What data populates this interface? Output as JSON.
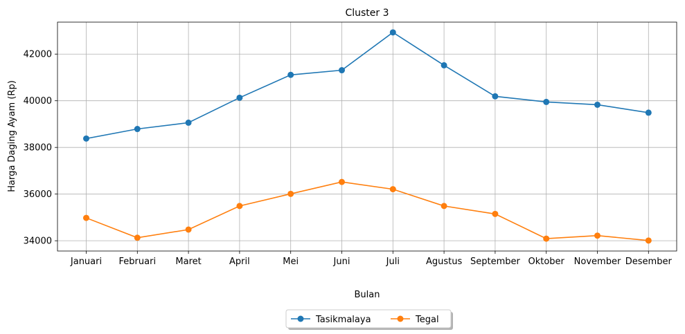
{
  "chart_data": {
    "type": "line",
    "title": "Cluster 3",
    "xlabel": "Bulan",
    "ylabel": "Harga Daging Ayam (Rp)",
    "categories": [
      "Januari",
      "Februari",
      "Maret",
      "April",
      "Mei",
      "Juni",
      "Juli",
      "Agustus",
      "September",
      "Oktober",
      "November",
      "Desember"
    ],
    "ylim": [
      33560,
      43370
    ],
    "yticks": [
      34000,
      36000,
      38000,
      40000,
      42000
    ],
    "grid": true,
    "legend_position": "bottom-center",
    "series": [
      {
        "name": "Tasikmalaya",
        "color": "#1f77b4",
        "values": [
          38380,
          38790,
          39060,
          40130,
          41110,
          41310,
          42930,
          41520,
          40190,
          39950,
          39830,
          39490
        ]
      },
      {
        "name": "Tegal",
        "color": "#ff7f0e",
        "values": [
          34980,
          34130,
          34480,
          35490,
          36010,
          36520,
          36210,
          35490,
          35150,
          34090,
          34220,
          34010
        ]
      }
    ]
  }
}
